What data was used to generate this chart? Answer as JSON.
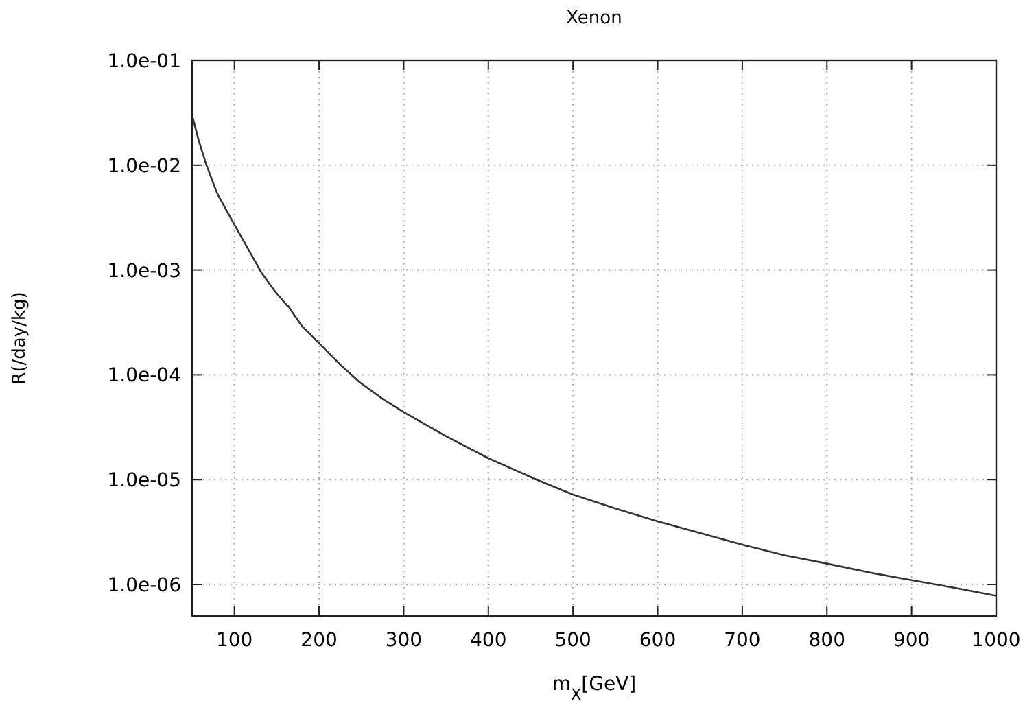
{
  "chart_data": {
    "type": "line",
    "title": "Xenon",
    "xlabel": "m$_{X}$[GeV]",
    "ylabel": "R(/day/kg)",
    "log": "y",
    "grid": true,
    "xlim": [
      50,
      1000
    ],
    "xticks": [
      100,
      200,
      300,
      400,
      500,
      600,
      700,
      800,
      900,
      1000
    ],
    "ylim": [
      5e-07,
      0.1
    ],
    "yticks": [
      {
        "value": 1e-06,
        "label": "1.0e-06"
      },
      {
        "value": 1e-05,
        "label": "1.0e-05"
      },
      {
        "value": 0.0001,
        "label": "1.0e-04"
      },
      {
        "value": 0.001,
        "label": "1.0e-03"
      },
      {
        "value": 0.01,
        "label": "1.0e-02"
      },
      {
        "value": 0.1,
        "label": "1.0e-01"
      }
    ],
    "series": [
      {
        "color": "#333333",
        "x": [
          50,
          58,
          67,
          80,
          100,
          115,
          132,
          147,
          162,
          164,
          167,
          180,
          200,
          225,
          248,
          275,
          300,
          350,
          400,
          457,
          500,
          550,
          600,
          650,
          700,
          750,
          800,
          850,
          900,
          950,
          1000
        ],
        "values": [
          0.03,
          0.017,
          0.01,
          0.0053,
          0.0027,
          0.00165,
          0.00094,
          0.00064,
          0.00046,
          0.00045,
          0.00041,
          0.00029,
          0.0002,
          0.000125,
          8.5e-05,
          5.9e-05,
          4.4e-05,
          2.6e-05,
          1.6e-05,
          1e-05,
          7.2e-06,
          5.3e-06,
          4e-06,
          3.1e-06,
          2.4e-06,
          1.9e-06,
          1.58e-06,
          1.3e-06,
          1.1e-06,
          9.3e-07,
          7.8e-07
        ]
      }
    ]
  }
}
